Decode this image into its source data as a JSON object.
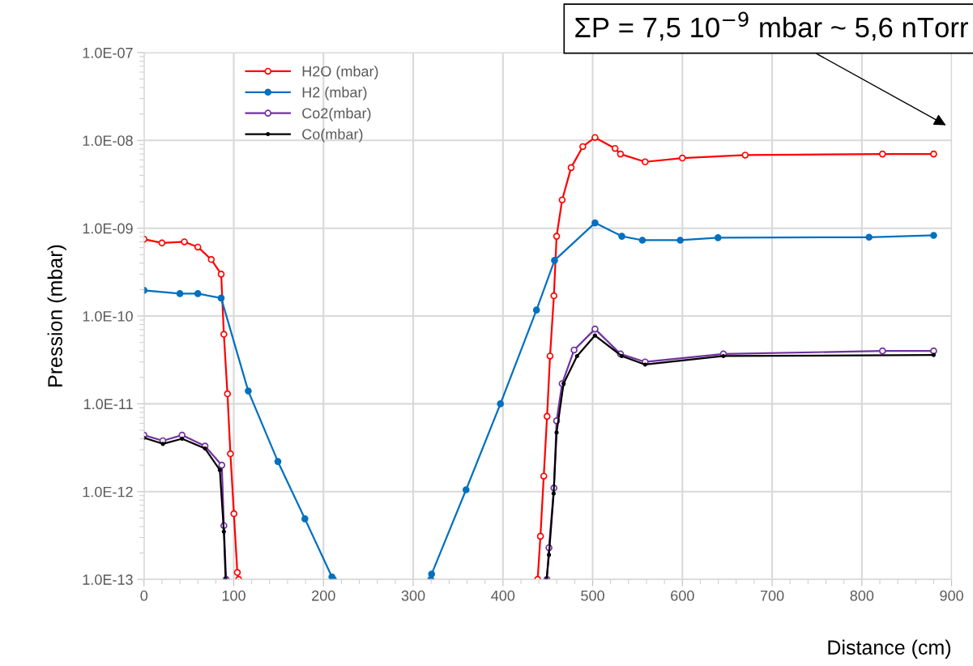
{
  "chart_data": {
    "type": "line",
    "xlabel": "Distance (cm)",
    "ylabel": "Pression (mbar)",
    "log": "y",
    "xlim": [
      0,
      900
    ],
    "xticks": [
      0,
      100,
      200,
      300,
      400,
      500,
      600,
      700,
      800,
      900
    ],
    "ylim": [
      1e-13,
      1e-07
    ],
    "yticks": [
      {
        "value": 1e-13,
        "label": "1.0E-13"
      },
      {
        "value": 1e-12,
        "label": "1.0E-12"
      },
      {
        "value": 1e-11,
        "label": "1.0E-11"
      },
      {
        "value": 1e-10,
        "label": "1.0E-10"
      },
      {
        "value": 1e-09,
        "label": "1.0E-09"
      },
      {
        "value": 1e-08,
        "label": "1.0E-08"
      },
      {
        "value": 1e-07,
        "label": "1.0E-07"
      }
    ],
    "grid": true,
    "legend": "top left",
    "annotations": [
      "ΣP = 7,5 10$^{−9}$ mbar ~ 5,6 nTorr"
    ],
    "series": [
      {
        "name": "H2O (mbar)",
        "color": "#ff0000",
        "marker": "circle",
        "x": [
          0,
          20,
          45,
          60,
          75,
          86,
          89,
          93,
          96.3,
          100.2,
          104,
          105.5,
          null,
          438.7,
          441.8,
          445.5,
          449.2,
          452.5,
          456.8,
          459.8,
          466,
          476,
          489,
          502.6,
          525,
          531,
          558.5,
          600,
          670,
          823,
          880
        ],
        "values": [
          7.5e-10,
          6.8e-10,
          7e-10,
          6.1e-10,
          4.4e-10,
          3e-10,
          6.2e-11,
          1.3e-11,
          2.7e-12,
          5.6e-13,
          1.2e-13,
          1e-13,
          null,
          1e-13,
          3.1e-13,
          1.5e-12,
          7.2e-12,
          3.5e-11,
          1.7e-10,
          8.1e-10,
          2.1e-09,
          4.9e-09,
          8.5e-09,
          1.08e-08,
          8.1e-09,
          7e-09,
          5.7e-09,
          6.3e-09,
          6.8e-09,
          7e-09,
          7e-09
        ]
      },
      {
        "name": "H2 (mbar)",
        "color": "#0070c0",
        "marker": "circle",
        "x": [
          0,
          40,
          60,
          86,
          116.2,
          149.2,
          179.3,
          209.4,
          211,
          null,
          319.7,
          320.5,
          358.9,
          397.2,
          437.4,
          457.5,
          502.6,
          532.5,
          555.4,
          597.6,
          639.7,
          808,
          880
        ],
        "values": [
          1.96e-10,
          1.8e-10,
          1.8e-10,
          1.6e-10,
          1.4e-11,
          2.2e-12,
          4.9e-13,
          1.07e-13,
          1e-13,
          null,
          1e-13,
          1.15e-13,
          1.05e-12,
          1e-11,
          1.17e-10,
          4.3e-10,
          1.15e-09,
          8.1e-10,
          7.3e-10,
          7.3e-10,
          7.8e-10,
          7.9e-10,
          8.3e-10
        ]
      },
      {
        "name": "Co2(mbar)",
        "color": "#7030a0",
        "marker": "circle",
        "x": [
          0,
          21,
          42.4,
          68,
          86.7,
          89,
          91.5,
          null,
          449,
          451.3,
          456.8,
          459.8,
          466,
          479.3,
          502.6,
          531,
          558.5,
          645.7,
          823,
          880
        ],
        "values": [
          4.4e-12,
          3.8e-12,
          4.4e-12,
          3.3e-12,
          2e-12,
          4.1e-13,
          1e-13,
          null,
          1e-13,
          2.3e-13,
          1.1e-12,
          6.4e-12,
          1.7e-11,
          4.1e-11,
          7.1e-11,
          3.7e-11,
          3e-11,
          3.7e-11,
          4e-11,
          4e-11
        ]
      },
      {
        "name": "Co(mbar)",
        "color": "#000000",
        "marker": "point",
        "x": [
          0,
          21,
          42.4,
          68,
          84.5,
          89,
          91,
          null,
          448.6,
          451.3,
          456.5,
          459.8,
          467.6,
          482.6,
          502.6,
          532.5,
          558.5,
          645.7,
          880
        ],
        "values": [
          4.1e-12,
          3.5e-12,
          4e-12,
          3.1e-12,
          1.76e-12,
          3.5e-13,
          1e-13,
          null,
          1e-13,
          1.9e-13,
          9.5e-13,
          4.7e-12,
          1.7e-11,
          3.5e-11,
          6e-11,
          3.5e-11,
          2.8e-11,
          3.5e-11,
          3.6e-11
        ]
      }
    ]
  }
}
